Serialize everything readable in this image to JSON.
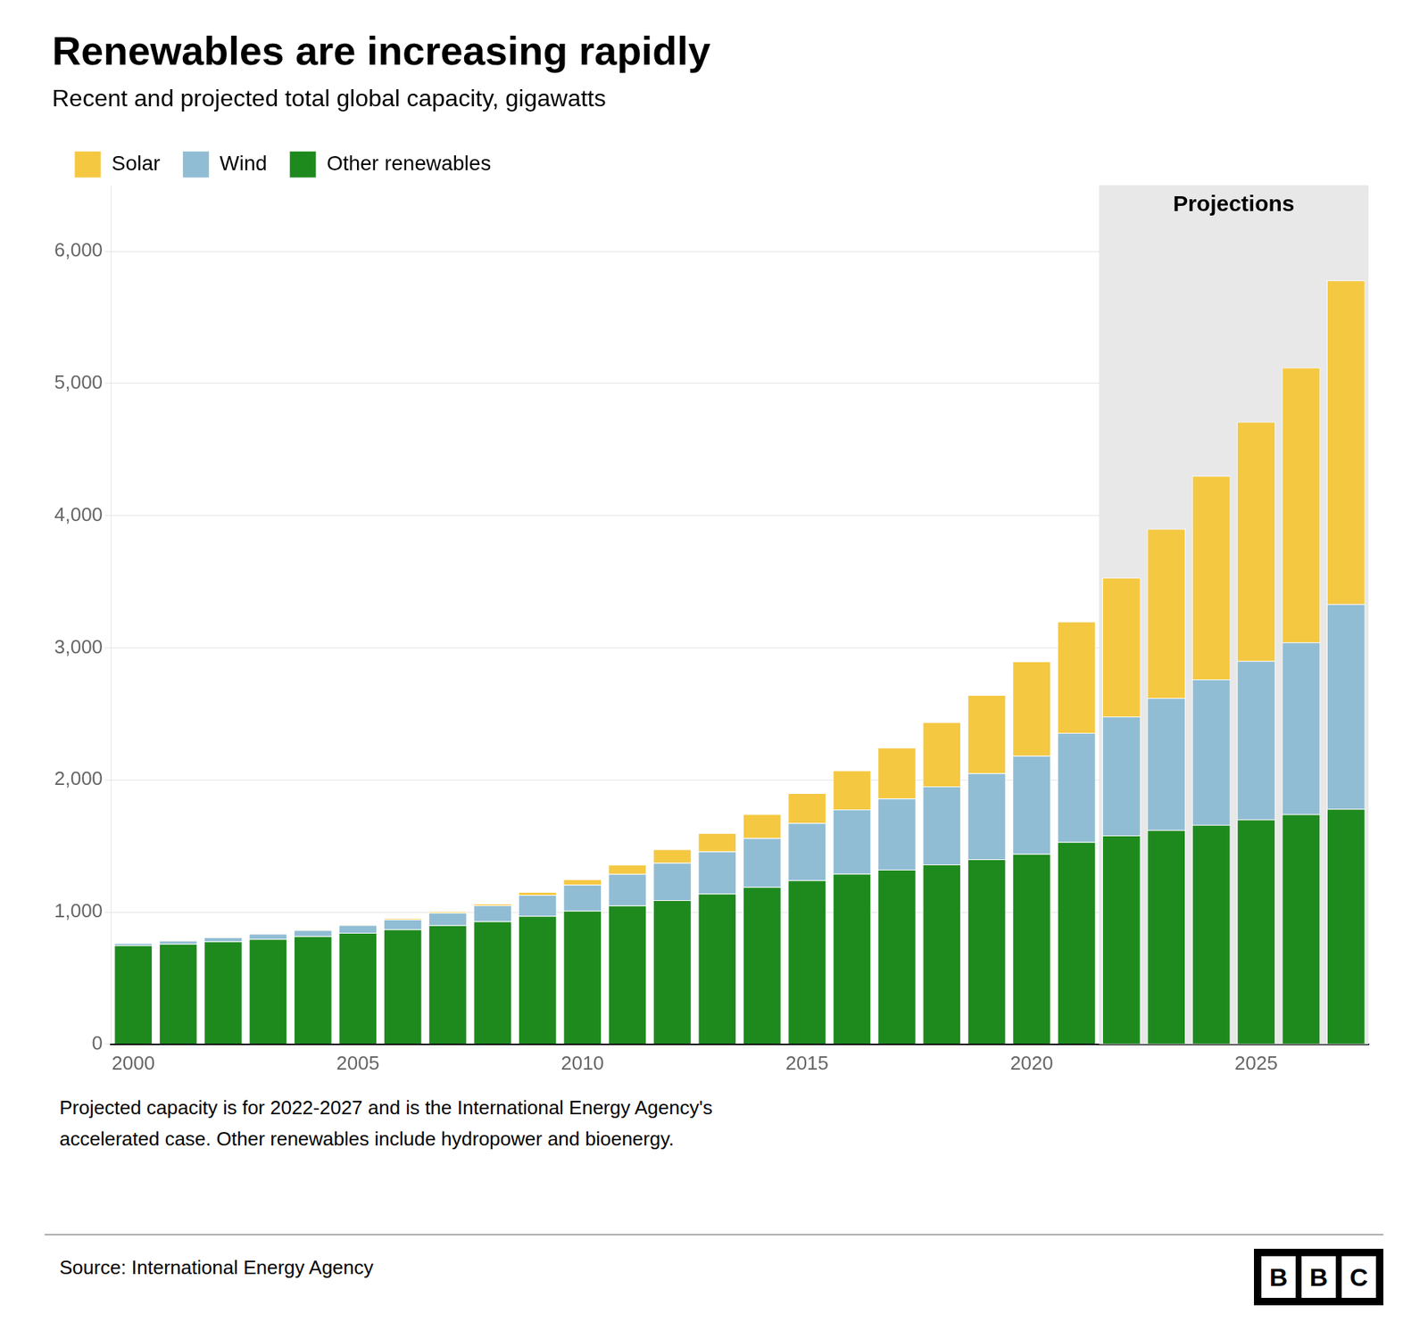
{
  "chart_data": {
    "type": "bar",
    "title": "Renewables are increasing rapidly",
    "subtitle": "Recent and projected total global capacity, gigawatts",
    "note": "Projected capacity is for 2022-2027 and is the International Energy Agency's\naccelerated case. Other renewables include hydropower and bioenergy.",
    "source": "Source: International Energy Agency",
    "logo": "BBC",
    "categories": [
      "2000",
      null,
      null,
      null,
      null,
      "2005",
      null,
      null,
      null,
      null,
      "2010",
      null,
      null,
      null,
      null,
      "2015",
      null,
      null,
      null,
      null,
      "2020",
      null,
      null,
      null,
      null,
      "2025",
      null,
      null
    ],
    "series": [
      {
        "name": "Other renewables",
        "color": "#1E8A1E",
        "values": [
          748,
          760,
          778,
          796,
          817,
          842,
          870,
          900,
          930,
          970,
          1010,
          1050,
          1090,
          1140,
          1190,
          1240,
          1290,
          1320,
          1360,
          1400,
          1440,
          1530,
          1580,
          1620,
          1660,
          1700,
          1740,
          1780
        ]
      },
      {
        "name": "Wind",
        "color": "#91BDD4",
        "values": [
          17,
          24,
          31,
          39,
          47,
          59,
          74,
          94,
          121,
          159,
          197,
          238,
          283,
          318,
          370,
          433,
          487,
          539,
          591,
          651,
          743,
          825,
          900,
          1000,
          1100,
          1200,
          1300,
          1550
        ]
      },
      {
        "name": "Solar",
        "color": "#F5C842",
        "values": [
          1,
          2,
          2,
          3,
          4,
          5,
          7,
          9,
          13,
          23,
          40,
          71,
          102,
          140,
          181,
          227,
          295,
          386,
          486,
          591,
          714,
          843,
          1050,
          1280,
          1540,
          1810,
          2080,
          2450
        ]
      }
    ],
    "stacked": true,
    "ylim": [
      0,
      6500
    ],
    "yticks": [
      0,
      {
        "value": 1000,
        "label": "1,000"
      },
      {
        "value": 2000,
        "label": "2,000"
      },
      {
        "value": 3000,
        "label": "3,000"
      },
      {
        "value": 4000,
        "label": "4,000"
      },
      {
        "value": 5000,
        "label": "5,000"
      },
      {
        "value": 6000,
        "label": "6,000"
      }
    ],
    "grid": true,
    "legend": "upper left",
    "annotations": [
      {
        "text": "Projections",
        "start": 22,
        "end": 27,
        "color": "#E8E8E8"
      }
    ]
  }
}
